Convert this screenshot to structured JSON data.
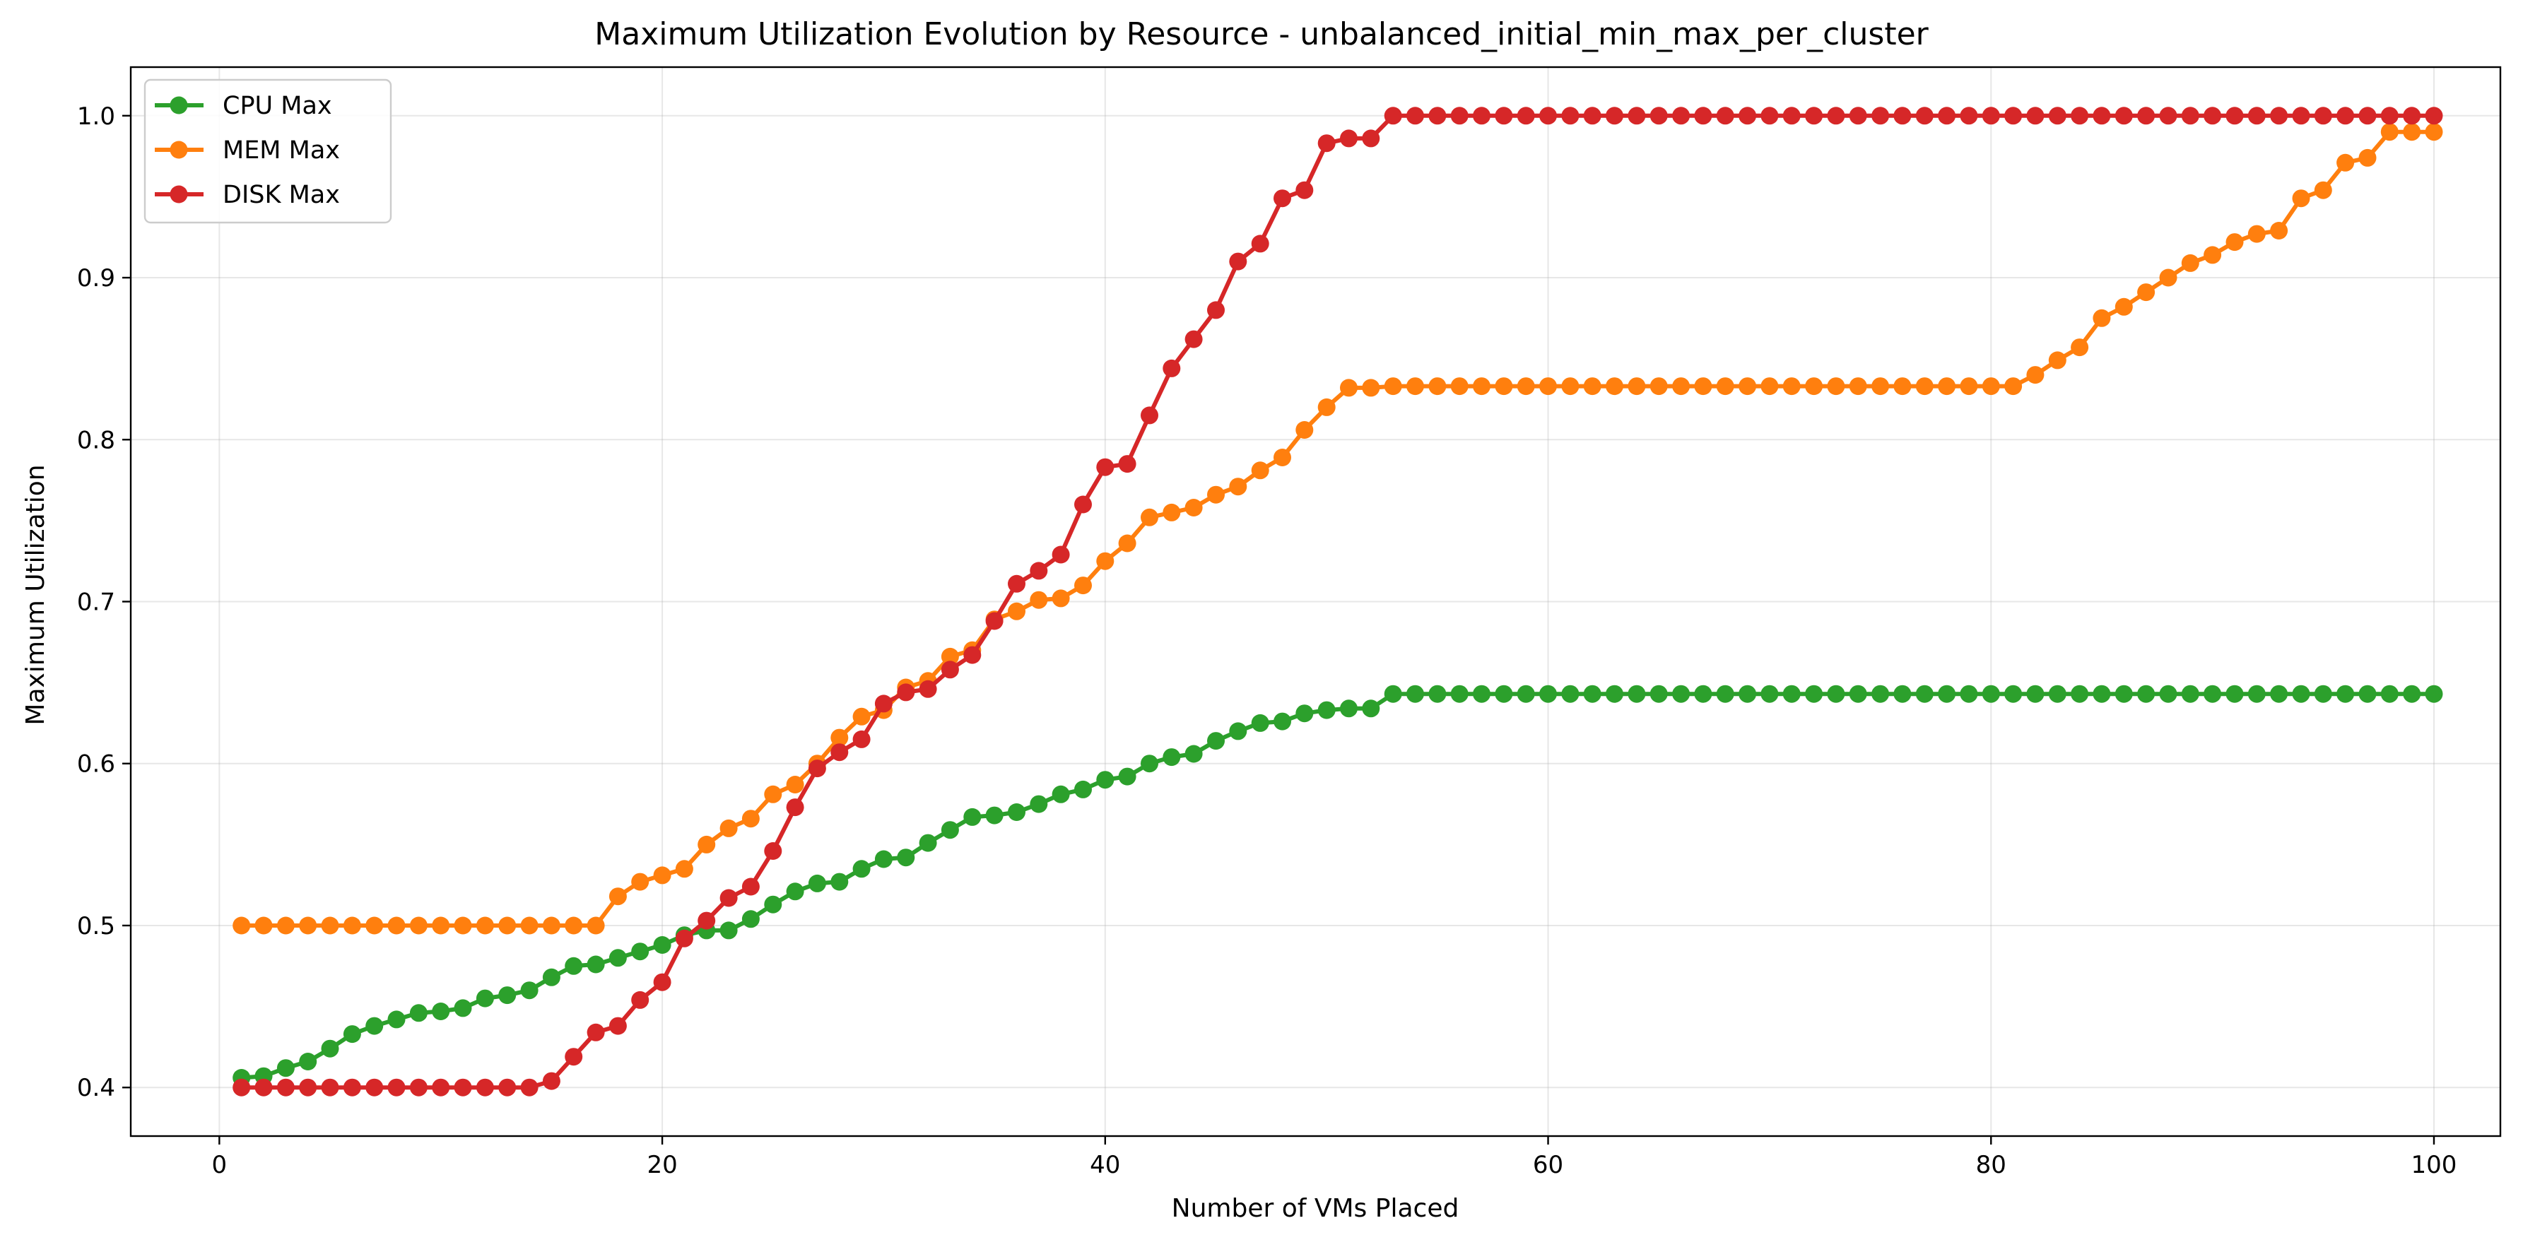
{
  "chart_data": {
    "type": "line",
    "title": "Maximum Utilization Evolution by Resource - unbalanced_initial_min_max_per_cluster",
    "xlabel": "Number of VMs Placed",
    "ylabel": "Maximum Utilization",
    "xlim": [
      -4,
      103
    ],
    "ylim": [
      0.37,
      1.03
    ],
    "xticks": [
      0,
      20,
      40,
      60,
      80,
      100
    ],
    "yticks": [
      0.4,
      0.5,
      0.6,
      0.7,
      0.8,
      0.9,
      1.0
    ],
    "xtick_labels": [
      "0",
      "20",
      "40",
      "60",
      "80",
      "100"
    ],
    "ytick_labels": [
      "0.4",
      "0.5",
      "0.6",
      "0.7",
      "0.8",
      "0.9",
      "1.0"
    ],
    "grid": true,
    "legend_position": "top-left",
    "x": [
      1,
      2,
      3,
      4,
      5,
      6,
      7,
      8,
      9,
      10,
      11,
      12,
      13,
      14,
      15,
      16,
      17,
      18,
      19,
      20,
      21,
      22,
      23,
      24,
      25,
      26,
      27,
      28,
      29,
      30,
      31,
      32,
      33,
      34,
      35,
      36,
      37,
      38,
      39,
      40,
      41,
      42,
      43,
      44,
      45,
      46,
      47,
      48,
      49,
      50,
      51,
      52,
      53,
      54,
      55,
      56,
      57,
      58,
      59,
      60,
      61,
      62,
      63,
      64,
      65,
      66,
      67,
      68,
      69,
      70,
      71,
      72,
      73,
      74,
      75,
      76,
      77,
      78,
      79,
      80,
      81,
      82,
      83,
      84,
      85,
      86,
      87,
      88,
      89,
      90,
      91,
      92,
      93,
      94,
      95,
      96,
      97,
      98,
      99,
      100
    ],
    "series": [
      {
        "name": "CPU Max",
        "color": "#2ca02c",
        "values": [
          0.406,
          0.407,
          0.412,
          0.416,
          0.424,
          0.433,
          0.438,
          0.442,
          0.446,
          0.447,
          0.449,
          0.455,
          0.457,
          0.46,
          0.468,
          0.475,
          0.476,
          0.48,
          0.484,
          0.488,
          0.494,
          0.497,
          0.497,
          0.504,
          0.513,
          0.521,
          0.526,
          0.527,
          0.535,
          0.541,
          0.542,
          0.551,
          0.559,
          0.567,
          0.568,
          0.57,
          0.575,
          0.581,
          0.584,
          0.59,
          0.592,
          0.6,
          0.604,
          0.606,
          0.614,
          0.62,
          0.625,
          0.626,
          0.631,
          0.633,
          0.634,
          0.634,
          0.643,
          0.643,
          0.643,
          0.643,
          0.643,
          0.643,
          0.643,
          0.643,
          0.643,
          0.643,
          0.643,
          0.643,
          0.643,
          0.643,
          0.643,
          0.643,
          0.643,
          0.643,
          0.643,
          0.643,
          0.643,
          0.643,
          0.643,
          0.643,
          0.643,
          0.643,
          0.643,
          0.643,
          0.643,
          0.643,
          0.643,
          0.643,
          0.643,
          0.643,
          0.643,
          0.643,
          0.643,
          0.643,
          0.643,
          0.643,
          0.643,
          0.643,
          0.643,
          0.643,
          0.643,
          0.643,
          0.643,
          0.643
        ]
      },
      {
        "name": "MEM Max",
        "color": "#ff7f0e",
        "values": [
          0.5,
          0.5,
          0.5,
          0.5,
          0.5,
          0.5,
          0.5,
          0.5,
          0.5,
          0.5,
          0.5,
          0.5,
          0.5,
          0.5,
          0.5,
          0.5,
          0.5,
          0.518,
          0.527,
          0.531,
          0.535,
          0.55,
          0.56,
          0.566,
          0.581,
          0.587,
          0.6,
          0.616,
          0.629,
          0.633,
          0.647,
          0.651,
          0.666,
          0.67,
          0.689,
          0.694,
          0.701,
          0.702,
          0.71,
          0.725,
          0.736,
          0.752,
          0.755,
          0.758,
          0.766,
          0.771,
          0.781,
          0.789,
          0.806,
          0.82,
          0.832,
          0.832,
          0.833,
          0.833,
          0.833,
          0.833,
          0.833,
          0.833,
          0.833,
          0.833,
          0.833,
          0.833,
          0.833,
          0.833,
          0.833,
          0.833,
          0.833,
          0.833,
          0.833,
          0.833,
          0.833,
          0.833,
          0.833,
          0.833,
          0.833,
          0.833,
          0.833,
          0.833,
          0.833,
          0.833,
          0.833,
          0.84,
          0.849,
          0.857,
          0.875,
          0.882,
          0.891,
          0.9,
          0.909,
          0.914,
          0.922,
          0.927,
          0.929,
          0.949,
          0.954,
          0.971,
          0.974,
          0.99,
          0.99,
          0.99
        ]
      },
      {
        "name": "DISK Max",
        "color": "#d62728",
        "values": [
          0.4,
          0.4,
          0.4,
          0.4,
          0.4,
          0.4,
          0.4,
          0.4,
          0.4,
          0.4,
          0.4,
          0.4,
          0.4,
          0.4,
          0.404,
          0.419,
          0.434,
          0.438,
          0.454,
          0.465,
          0.492,
          0.503,
          0.517,
          0.524,
          0.546,
          0.573,
          0.597,
          0.607,
          0.615,
          0.637,
          0.644,
          0.646,
          0.658,
          0.667,
          0.688,
          0.711,
          0.719,
          0.729,
          0.76,
          0.783,
          0.785,
          0.815,
          0.844,
          0.862,
          0.88,
          0.91,
          0.921,
          0.949,
          0.954,
          0.983,
          0.986,
          0.986,
          1.0,
          1.0,
          1.0,
          1.0,
          1.0,
          1.0,
          1.0,
          1.0,
          1.0,
          1.0,
          1.0,
          1.0,
          1.0,
          1.0,
          1.0,
          1.0,
          1.0,
          1.0,
          1.0,
          1.0,
          1.0,
          1.0,
          1.0,
          1.0,
          1.0,
          1.0,
          1.0,
          1.0,
          1.0,
          1.0,
          1.0,
          1.0,
          1.0,
          1.0,
          1.0,
          1.0,
          1.0,
          1.0,
          1.0,
          1.0,
          1.0,
          1.0,
          1.0,
          1.0,
          1.0,
          1.0,
          1.0,
          1.0
        ]
      }
    ]
  }
}
